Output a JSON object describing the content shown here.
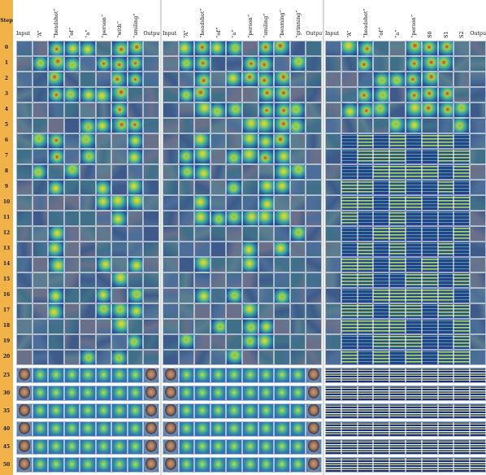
{
  "figure": {
    "step_title": "Step",
    "steps_upper": [
      "0",
      "1",
      "2",
      "3",
      "4",
      "5",
      "6",
      "7",
      "8",
      "9",
      "10",
      "11",
      "12",
      "13",
      "14",
      "15",
      "16",
      "17",
      "18",
      "19",
      "20"
    ],
    "steps_lower": [
      "25",
      "30",
      "35",
      "40",
      "45",
      "50"
    ],
    "panels": [
      {
        "columns": [
          "Input",
          "“A”",
          "“headshot”",
          "“of”",
          "“a”",
          "“person”",
          "“with”",
          "“smiling”",
          "Output"
        ],
        "lower_style": "face"
      },
      {
        "columns": [
          "Input",
          "“A”",
          "“headshot”",
          "“of”",
          "“a”",
          "“person”",
          "“smiling”",
          "“beaming”",
          "“grinning”",
          "Output"
        ],
        "lower_style": "face"
      },
      {
        "columns": [
          "Input",
          "“A”",
          "“headshot”",
          "“of”",
          "“a”",
          "“person”",
          "S0",
          "S1",
          "S2",
          "Output"
        ],
        "lower_style": "stripes"
      }
    ]
  }
}
